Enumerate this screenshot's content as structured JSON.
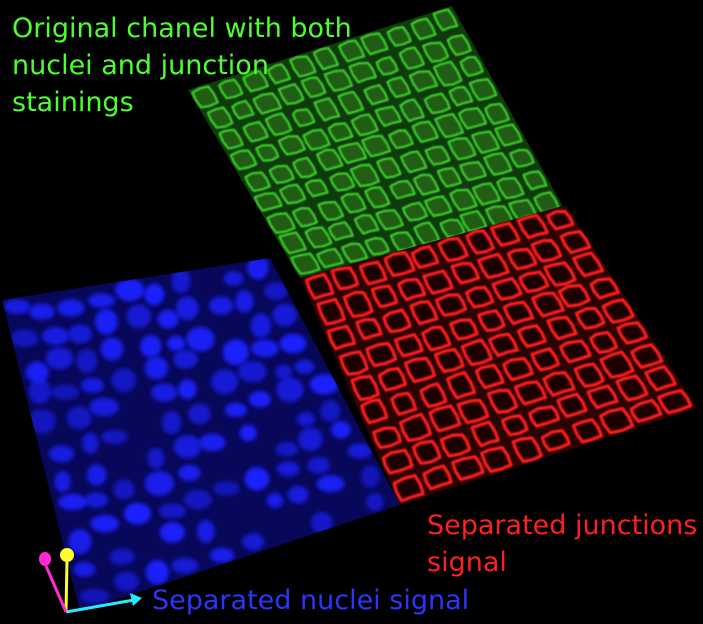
{
  "labels": {
    "original": {
      "lines": [
        "Original chanel with both",
        "nuclei and junction",
        "stainings"
      ],
      "color": "#4cff2e"
    },
    "junctions": {
      "lines": [
        "Separated junctions",
        "signal"
      ],
      "color": "#ff1f1f"
    },
    "nuclei": {
      "lines": [
        "Separated nuclei signal"
      ],
      "color": "#2a35ff"
    }
  },
  "axes_widget": {
    "axis_colors": {
      "x": "#2de6ff",
      "y": "#ffff2a",
      "z": "#ff2ad4"
    }
  },
  "panels": {
    "original_color": "#3cd92a",
    "junctions_color": "#ff1a1a",
    "nuclei_color": "#1e22ff"
  }
}
